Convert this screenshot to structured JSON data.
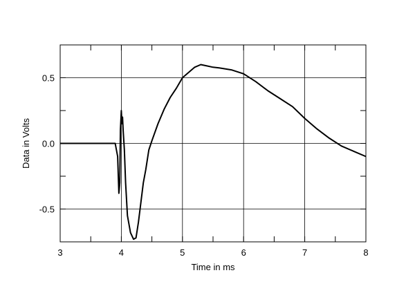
{
  "chart_data": {
    "type": "line",
    "title": "",
    "xlabel": "Time in ms",
    "ylabel": "Data in Volts",
    "xlim": [
      3,
      8
    ],
    "ylim": [
      -0.75,
      0.75
    ],
    "grid": true,
    "x_ticks": [
      3,
      4,
      5,
      6,
      7,
      8
    ],
    "x_tick_labels": [
      "3",
      "4",
      "5",
      "6",
      "7",
      "8"
    ],
    "y_ticks": [
      0.5,
      0.0,
      -0.5
    ],
    "y_tick_labels": [
      "0.5",
      "0.0",
      "-0.5"
    ],
    "series": [
      {
        "color": "#000000",
        "x": [
          3.0,
          3.5,
          3.9,
          3.94,
          3.96,
          3.975,
          3.985,
          4.0,
          4.01,
          4.02,
          4.03,
          4.05,
          4.07,
          4.1,
          4.15,
          4.2,
          4.24,
          4.28,
          4.32,
          4.36,
          4.4,
          4.45,
          4.5,
          4.6,
          4.7,
          4.8,
          4.9,
          5.0,
          5.1,
          5.2,
          5.3,
          5.4,
          5.5,
          5.6,
          5.8,
          6.0,
          6.2,
          6.4,
          6.6,
          6.8,
          7.0,
          7.2,
          7.4,
          7.6,
          7.8,
          8.0
        ],
        "y": [
          0.0,
          0.0,
          0.0,
          -0.1,
          -0.38,
          -0.3,
          0.1,
          0.25,
          0.15,
          0.2,
          0.1,
          -0.05,
          -0.3,
          -0.55,
          -0.68,
          -0.73,
          -0.72,
          -0.6,
          -0.45,
          -0.3,
          -0.2,
          -0.05,
          0.02,
          0.15,
          0.26,
          0.35,
          0.42,
          0.5,
          0.54,
          0.58,
          0.6,
          0.59,
          0.58,
          0.575,
          0.56,
          0.53,
          0.47,
          0.4,
          0.34,
          0.28,
          0.19,
          0.11,
          0.04,
          -0.02,
          -0.06,
          -0.1
        ]
      }
    ]
  }
}
